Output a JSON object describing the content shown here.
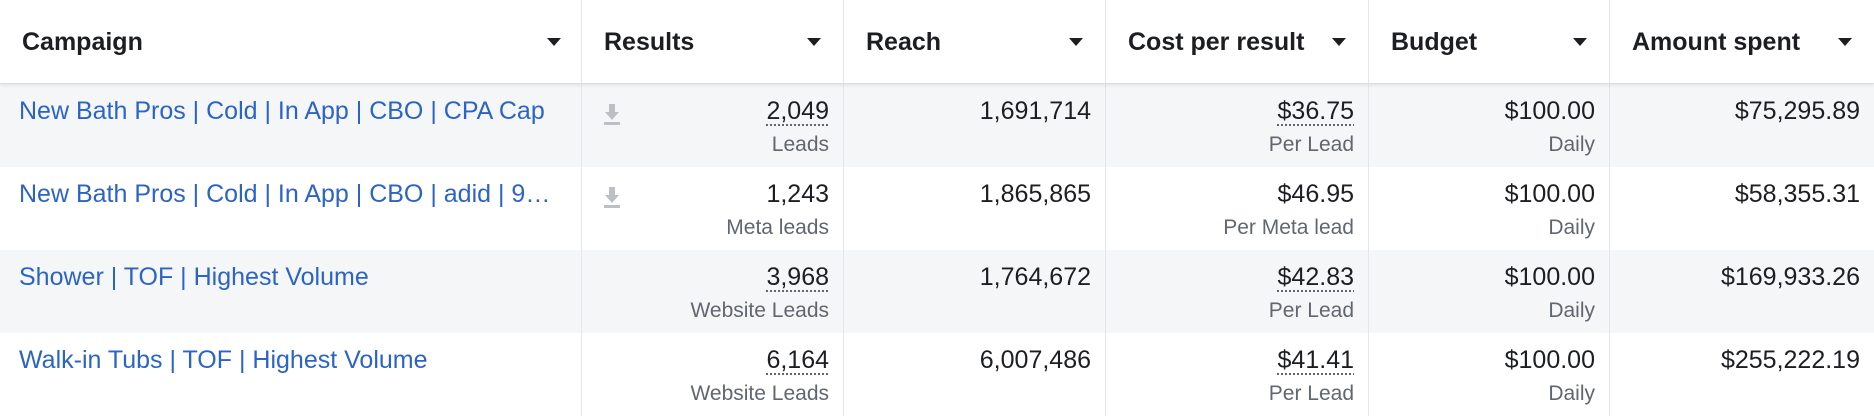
{
  "columns": [
    "Campaign",
    "Results",
    "Reach",
    "Cost per result",
    "Budget",
    "Amount spent"
  ],
  "rows": [
    {
      "campaign": "New Bath Pros | Cold | In App | CBO | CPA Cap",
      "results": "2,049",
      "results_type": "Leads",
      "reach": "1,691,714",
      "cost_per_result": "$36.75",
      "cost_type": "Per Lead",
      "budget": "$100.00",
      "budget_type": "Daily",
      "amount_spent": "$75,295.89"
    },
    {
      "campaign": "New Bath Pros | Cold | In App | CBO | adid | 9…",
      "results": "1,243",
      "results_type": "Meta leads",
      "reach": "1,865,865",
      "cost_per_result": "$46.95",
      "cost_type": "Per Meta lead",
      "budget": "$100.00",
      "budget_type": "Daily",
      "amount_spent": "$58,355.31"
    },
    {
      "campaign": "Shower | TOF | Highest Volume",
      "results": "3,968",
      "results_type": "Website Leads",
      "reach": "1,764,672",
      "cost_per_result": "$42.83",
      "cost_type": "Per Lead",
      "budget": "$100.00",
      "budget_type": "Daily",
      "amount_spent": "$169,933.26"
    },
    {
      "campaign": "Walk-in Tubs | TOF | Highest Volume",
      "results": "6,164",
      "results_type": "Website Leads",
      "reach": "6,007,486",
      "cost_per_result": "$41.41",
      "cost_type": "Per Lead",
      "budget": "$100.00",
      "budget_type": "Daily",
      "amount_spent": "$255,222.19"
    }
  ],
  "colors": {
    "link": "#2c64c6",
    "text": "#1c1e21",
    "secondary_text": "#606770",
    "alt_row": "#f5f6f7",
    "border": "#e4e6eb"
  },
  "icons": {
    "sort": "caret-down-icon",
    "download": "download-icon"
  }
}
